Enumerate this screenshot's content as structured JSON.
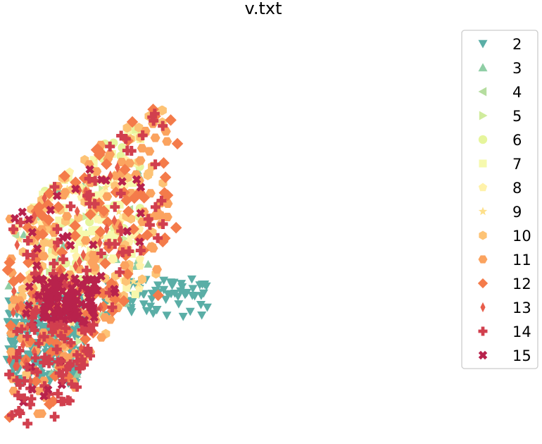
{
  "chart_data": {
    "type": "scatter",
    "title": "v.txt",
    "xlabel": "",
    "ylabel": "",
    "axes_visible": false,
    "grid": false,
    "legend_position": "top-right",
    "series": [
      {
        "name": "2",
        "marker": "triangle-down",
        "color": "#5aaea6"
      },
      {
        "name": "3",
        "marker": "triangle-up",
        "color": "#8fcea5"
      },
      {
        "name": "4",
        "marker": "triangle-left",
        "color": "#b5dd9f"
      },
      {
        "name": "5",
        "marker": "triangle-right",
        "color": "#d0ec9d"
      },
      {
        "name": "6",
        "marker": "circle",
        "color": "#e6f59c"
      },
      {
        "name": "7",
        "marker": "square",
        "color": "#f6f9ad"
      },
      {
        "name": "8",
        "marker": "pentagon",
        "color": "#fff2aa"
      },
      {
        "name": "9",
        "marker": "star",
        "color": "#fee08b"
      },
      {
        "name": "10",
        "marker": "hexagon",
        "color": "#fdc375"
      },
      {
        "name": "11",
        "marker": "hexagon2",
        "color": "#fba35f"
      },
      {
        "name": "12",
        "marker": "diamond",
        "color": "#f47b4a"
      },
      {
        "name": "13",
        "marker": "thin-diamond",
        "color": "#e85d4b"
      },
      {
        "name": "14",
        "marker": "plus-filled",
        "color": "#d13f4e"
      },
      {
        "name": "15",
        "marker": "x-filled",
        "color": "#b8224c"
      }
    ]
  }
}
